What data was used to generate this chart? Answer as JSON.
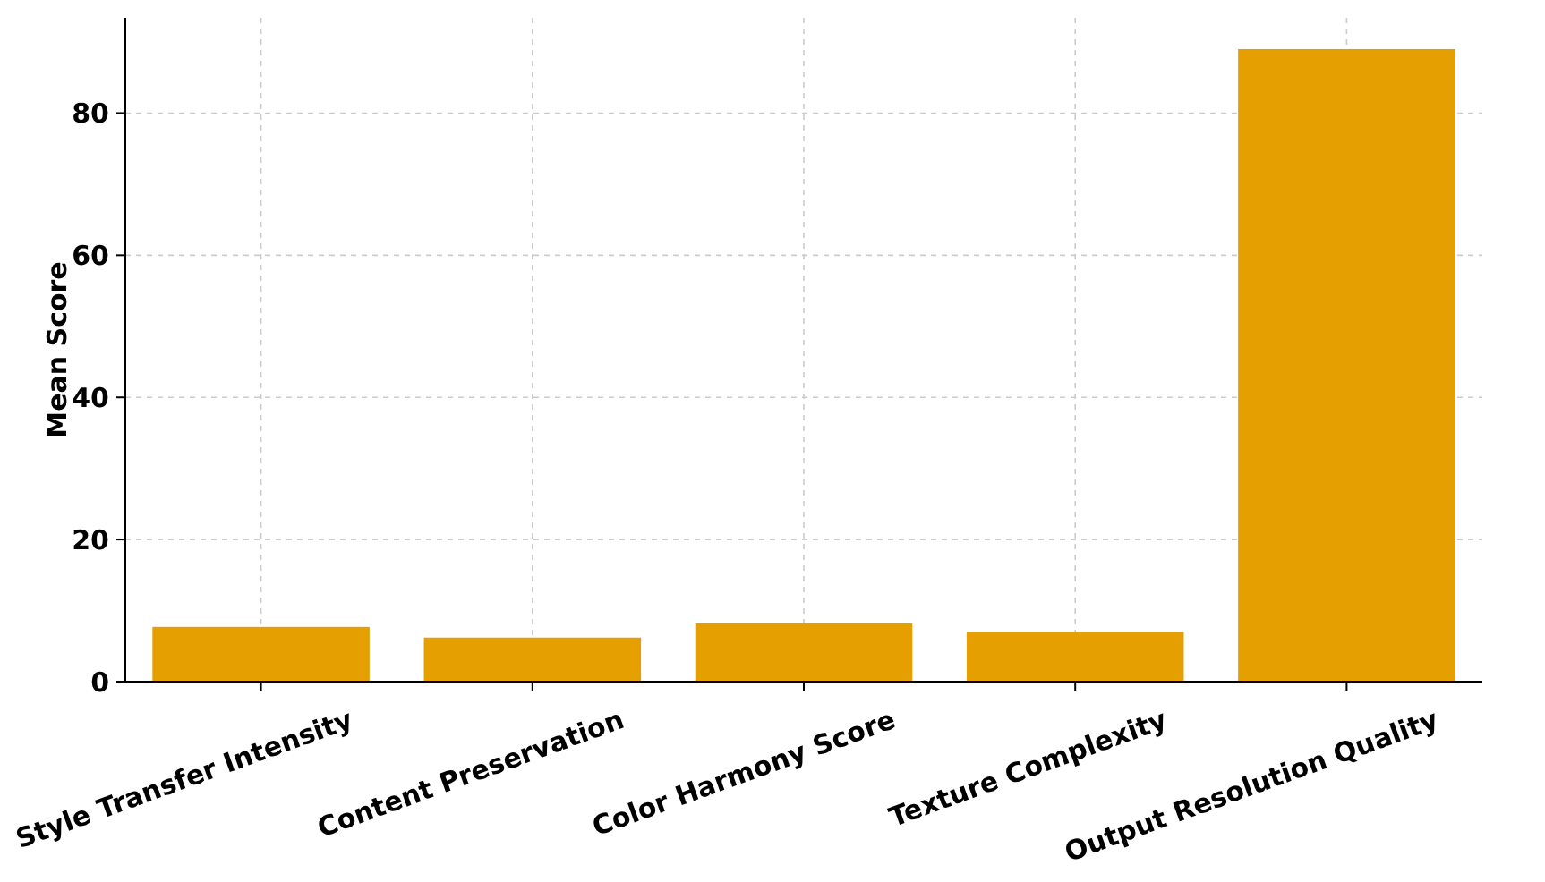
{
  "chart_data": {
    "type": "bar",
    "ylabel": "Mean Score",
    "categories": [
      "Style Transfer Intensity",
      "Content Preservation",
      "Color Harmony Score",
      "Texture Complexity",
      "Output Resolution Quality"
    ],
    "values": [
      7.7,
      6.2,
      8.2,
      7.0,
      89.0
    ],
    "color": "#e69f00",
    "ylim": [
      0,
      93.4
    ],
    "yticks": [
      0,
      20,
      40,
      60,
      80
    ],
    "grid": true
  }
}
